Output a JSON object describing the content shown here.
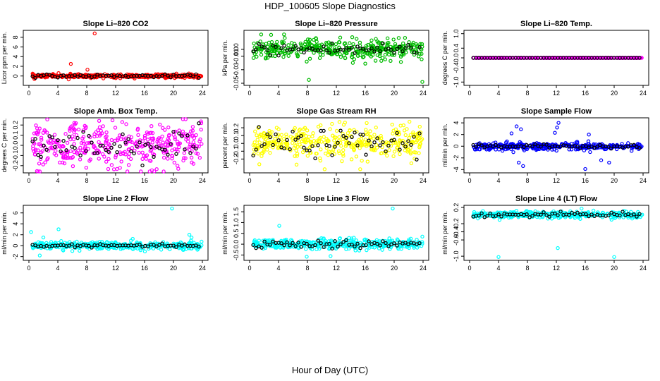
{
  "title": "HDP_100605  Slope Diagnostics",
  "xlabel": "Hour of Day (UTC)",
  "chart_data": [
    {
      "type": "scatter",
      "title": "Slope Li–820 CO2",
      "ylabel": "Licor ppm per min.",
      "xlim": [
        0,
        24
      ],
      "ylim": [
        -1.5,
        9
      ],
      "xticks": [
        0,
        4,
        8,
        12,
        16,
        20,
        24
      ],
      "yticks": [
        0,
        2,
        4,
        6,
        8
      ],
      "main_color": "#ff0000",
      "spread": 0.18,
      "black_spread": 0.15,
      "outliers": [
        [
          9.1,
          8.8
        ],
        [
          5.8,
          2.5
        ],
        [
          8.1,
          1.3
        ],
        [
          4.1,
          0.6
        ],
        [
          10.3,
          -0.5
        ],
        [
          5.5,
          -0.7
        ]
      ]
    },
    {
      "type": "scatter",
      "title": "Slope Li–820 Pressure",
      "ylabel": "kPa per min.",
      "xlim": [
        0,
        24
      ],
      "ylim": [
        -0.05,
        0.025
      ],
      "xticks": [
        0,
        4,
        8,
        12,
        16,
        20,
        24
      ],
      "yticks": [
        0.0,
        -0.01,
        -0.03,
        -0.05
      ],
      "ytick_labels": [
        "0.00",
        "-0.01",
        "-0.03",
        "-0.05"
      ],
      "main_color": "#00bb00",
      "spread": 0.007,
      "black_spread": 0.005,
      "outliers": [
        [
          1.6,
          0.022
        ],
        [
          8.2,
          -0.045
        ],
        [
          14.2,
          0.018
        ],
        [
          21.5,
          0.017
        ],
        [
          23.9,
          -0.048
        ],
        [
          7.9,
          -0.018
        ],
        [
          16.0,
          -0.021
        ],
        [
          19.5,
          -0.017
        ]
      ]
    },
    {
      "type": "scatter",
      "title": "Slope Li–820 Temp.",
      "ylabel": "degrees C per min.",
      "xlim": [
        0,
        24
      ],
      "ylim": [
        -1.05,
        1.05
      ],
      "xticks": [
        0,
        4,
        8,
        12,
        16,
        20,
        24
      ],
      "yticks": [
        1.0,
        0.4,
        0.0,
        -0.4,
        -1.0
      ],
      "ytick_labels": [
        "1.0",
        "0.4",
        "0.0",
        "-0.4",
        "-1.0"
      ],
      "main_color": "#ff00ff",
      "spread": 0.0,
      "black_spread": 0.0,
      "outliers": []
    },
    {
      "type": "scatter",
      "title": "Slope Amb. Box Temp.",
      "ylabel": "degrees C per min.",
      "xlim": [
        0,
        24
      ],
      "ylim": [
        -0.25,
        0.25
      ],
      "xticks": [
        0,
        4,
        8,
        12,
        16,
        20,
        24
      ],
      "yticks": [
        0.2,
        0.1,
        0.0,
        -0.1,
        -0.2
      ],
      "ytick_labels": [
        "0.2",
        "0.1",
        "0.0",
        "-0.1",
        "-0.2"
      ],
      "main_color": "#ff00ff",
      "spread": 0.11,
      "black_spread": 0.08,
      "outliers": []
    },
    {
      "type": "scatter",
      "title": "Slope Gas Stream RH",
      "ylabel": "percent per min.",
      "xlim": [
        0,
        24
      ],
      "ylim": [
        -0.35,
        0.3
      ],
      "xticks": [
        0,
        4,
        8,
        12,
        16,
        20,
        24
      ],
      "yticks": [
        0.2,
        0.1,
        0.0,
        -0.1,
        -0.2
      ],
      "ytick_labels": [
        "0.2",
        "0.1",
        "0.0",
        "-0.1",
        "-0.2"
      ],
      "main_color": "#ffff00",
      "spread": 0.11,
      "black_spread": 0.08,
      "outliers": [
        [
          15.3,
          -0.33
        ],
        [
          16.2,
          0.26
        ],
        [
          11.4,
          0.25
        ]
      ]
    },
    {
      "type": "scatter",
      "title": "Slope Sample Flow",
      "ylabel": "ml/min per min.",
      "xlim": [
        0,
        24
      ],
      "ylim": [
        -4.2,
        4.5
      ],
      "xticks": [
        0,
        4,
        8,
        12,
        16,
        20,
        24
      ],
      "yticks": [
        4,
        2,
        0,
        -2,
        -4
      ],
      "main_color": "#0000ff",
      "spread": 0.3,
      "black_spread": 0.15,
      "outliers": [
        [
          6.5,
          3.4
        ],
        [
          7.1,
          2.9
        ],
        [
          12.3,
          4.0
        ],
        [
          12.1,
          3.2
        ],
        [
          6.8,
          -2.8
        ],
        [
          7.4,
          -3.4
        ],
        [
          16.0,
          -3.9
        ],
        [
          19.3,
          -2.8
        ],
        [
          18.2,
          -2.4
        ],
        [
          11.8,
          2.3
        ],
        [
          16.5,
          2.0
        ],
        [
          5.8,
          2.2
        ]
      ]
    },
    {
      "type": "scatter",
      "title": "Slope Line 2 Flow",
      "ylabel": "ml/min per min.",
      "xlim": [
        0,
        24
      ],
      "ylim": [
        -2.3,
        7
      ],
      "xticks": [
        0,
        4,
        8,
        12,
        16,
        20,
        24
      ],
      "yticks": [
        6,
        4,
        2,
        0,
        -2
      ],
      "main_color": "#00ffff",
      "spread": 0.35,
      "black_spread": 0.12,
      "outliers": [
        [
          19.8,
          6.8
        ],
        [
          0.3,
          2.5
        ],
        [
          4.1,
          3.0
        ],
        [
          1.5,
          -1.8
        ],
        [
          22.2,
          2.0
        ],
        [
          22.5,
          1.5
        ],
        [
          2.0,
          1.5
        ]
      ]
    },
    {
      "type": "scatter",
      "title": "Slope Line 3 Flow",
      "ylabel": "ml/min per min.",
      "xlim": [
        0,
        24
      ],
      "ylim": [
        -0.65,
        1.7
      ],
      "xticks": [
        0,
        4,
        8,
        12,
        16,
        20,
        24
      ],
      "yticks": [
        1.5,
        1.0,
        0.5,
        0.0,
        -0.5
      ],
      "ytick_labels": [
        "1.5",
        "1.0",
        "0.5",
        "0.0",
        "-0.5"
      ],
      "main_color": "#00ffff",
      "spread": 0.12,
      "black_spread": 0.1,
      "outliers": [
        [
          19.8,
          1.65
        ],
        [
          4.1,
          0.85
        ],
        [
          11.2,
          -0.55
        ],
        [
          7.9,
          -0.58
        ],
        [
          23.9,
          0.35
        ]
      ]
    },
    {
      "type": "scatter",
      "title": "Slope Line 4 (LT) Flow",
      "ylabel": "ml/min per min.",
      "xlim": [
        0,
        24
      ],
      "ylim": [
        -1.05,
        0.2
      ],
      "xticks": [
        0,
        4,
        8,
        12,
        16,
        20,
        24
      ],
      "yticks": [
        0.2,
        -0.2,
        -0.4,
        -0.6,
        -1.0
      ],
      "ytick_labels": [
        "0.2",
        "-0.2",
        "-0.4",
        "-0.6",
        "-1.0"
      ],
      "main_color": "#00ffff",
      "spread": 0.04,
      "black_spread": 0.03,
      "center": 0.02,
      "outliers": [
        [
          4.0,
          -1.02
        ],
        [
          12.2,
          -0.8
        ],
        [
          20.0,
          -1.02
        ]
      ]
    }
  ]
}
